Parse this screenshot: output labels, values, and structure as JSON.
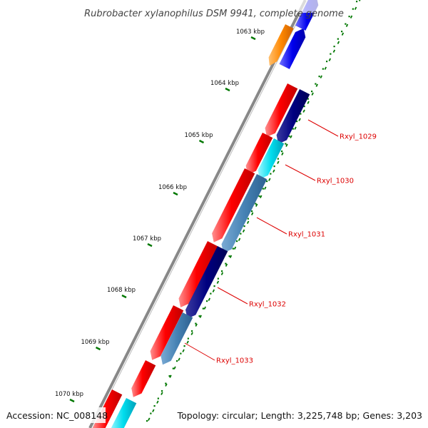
{
  "title": "Rubrobacter xylanophilus DSM 9941, complete genome",
  "footer": {
    "accession": "Accession: NC_008148",
    "topology": "Topology: circular; Length: 3,225,748 bp; Genes: 3,203"
  },
  "ticks": [
    "1063 kbp",
    "1064 kbp",
    "1065 kbp",
    "1066 kbp",
    "1067 kbp",
    "1068 kbp",
    "1069 kbp",
    "1070 kbp"
  ],
  "gene_labels": [
    "Rxyl_1029",
    "Rxyl_1030",
    "Rxyl_1031",
    "Rxyl_1032",
    "Rxyl_1033"
  ],
  "colors": {
    "backbone": "#888888",
    "forward_red": "#ff0000",
    "reverse_navy": "#000080",
    "reverse_steel": "#4682b4",
    "reverse_cyan": "#00ddee",
    "orange": "#ff8800",
    "blue": "#0000ee",
    "tick": "#007700",
    "label": "#dd0000"
  }
}
